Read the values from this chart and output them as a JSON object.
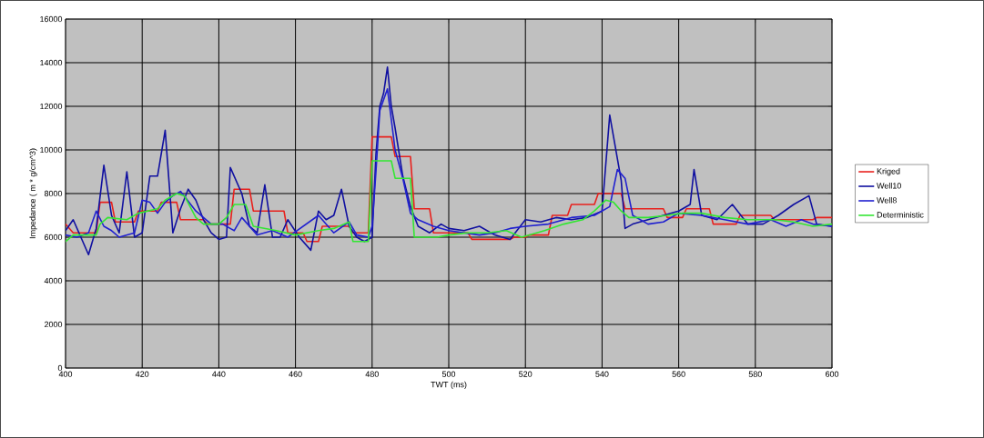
{
  "chart_data": {
    "type": "line",
    "xlabel": "TWT (ms)",
    "ylabel": "Impedance ( m * g/cm^3)",
    "xlim": [
      400,
      600
    ],
    "ylim": [
      0,
      16000
    ],
    "xticks": [
      400,
      420,
      440,
      460,
      480,
      500,
      520,
      540,
      560,
      580,
      600
    ],
    "yticks": [
      0,
      2000,
      4000,
      6000,
      8000,
      10000,
      12000,
      14000,
      16000
    ],
    "grid": true,
    "legend": "right",
    "marker": "none",
    "line_style": "solid",
    "series": [
      {
        "name": "Kriged",
        "color": "#e8201c",
        "x": [
          400,
          402,
          408,
          409,
          412,
          413,
          418,
          419,
          424,
          425,
          429,
          430,
          436,
          437,
          443,
          444,
          448,
          449,
          457,
          458,
          462,
          463,
          466,
          467,
          474,
          475,
          479,
          480,
          485,
          486,
          490,
          491,
          495,
          496,
          505,
          506,
          516,
          517,
          520,
          521,
          526,
          527,
          531,
          532,
          538,
          539,
          545,
          546,
          556,
          557,
          561,
          562,
          568,
          569,
          575,
          576,
          584,
          585,
          595,
          596,
          600
        ],
        "values": [
          6600,
          6200,
          6200,
          7600,
          7600,
          6700,
          6700,
          7200,
          7200,
          7600,
          7600,
          6800,
          6800,
          6600,
          6600,
          8200,
          8200,
          7200,
          7200,
          6200,
          6200,
          5800,
          5800,
          6500,
          6500,
          6200,
          6200,
          10600,
          10600,
          9700,
          9700,
          7300,
          7300,
          6200,
          6200,
          5900,
          5900,
          6000,
          6000,
          6100,
          6100,
          7000,
          7000,
          7500,
          7500,
          8000,
          8000,
          7300,
          7300,
          6900,
          6900,
          7300,
          7300,
          6600,
          6600,
          7000,
          7000,
          6800,
          6800,
          6900,
          6900
        ]
      },
      {
        "name": "Well10",
        "color": "#1010a0",
        "x": [
          400,
          402,
          404,
          406,
          408,
          410,
          412,
          414,
          416,
          418,
          420,
          422,
          424,
          426,
          428,
          430,
          432,
          434,
          436,
          438,
          440,
          442,
          443,
          446,
          448,
          450,
          452,
          454,
          456,
          458,
          461,
          464,
          466,
          468,
          470,
          472,
          474,
          476,
          478,
          480,
          481,
          482,
          483,
          484,
          485,
          486,
          488,
          490,
          492,
          495,
          498,
          500,
          504,
          508,
          512,
          516,
          520,
          524,
          528,
          532,
          536,
          540,
          542,
          543,
          545,
          546,
          548,
          552,
          556,
          560,
          563,
          564,
          566,
          570,
          574,
          578,
          582,
          586,
          590,
          594,
          596,
          600
        ],
        "values": [
          6300,
          6800,
          6000,
          5200,
          6400,
          9300,
          7000,
          6200,
          9000,
          6000,
          6200,
          8800,
          8800,
          10900,
          6200,
          7300,
          8200,
          7700,
          6800,
          6200,
          5900,
          6000,
          9200,
          8000,
          6500,
          6200,
          8400,
          6000,
          6000,
          6800,
          6000,
          5400,
          7200,
          6800,
          7000,
          8200,
          6500,
          6000,
          5800,
          6000,
          9800,
          12000,
          12600,
          13800,
          12000,
          11000,
          8800,
          7400,
          6500,
          6200,
          6600,
          6400,
          6300,
          6500,
          6100,
          5900,
          6800,
          6700,
          6900,
          6800,
          6900,
          7200,
          11600,
          10600,
          8600,
          6400,
          6600,
          6800,
          7000,
          7200,
          7500,
          9100,
          7000,
          6800,
          7500,
          6600,
          6600,
          7000,
          7500,
          7900,
          6600,
          6500
        ]
      },
      {
        "name": "Well8",
        "color": "#2020d0",
        "x": [
          400,
          403,
          406,
          408,
          410,
          412,
          414,
          418,
          420,
          422,
          424,
          426,
          428,
          430,
          434,
          438,
          441,
          444,
          446,
          450,
          454,
          458,
          462,
          466,
          470,
          474,
          476,
          479,
          480,
          481,
          482,
          484,
          486,
          488,
          490,
          492,
          496,
          500,
          504,
          508,
          512,
          516,
          520,
          526,
          532,
          538,
          542,
          544,
          546,
          548,
          552,
          556,
          560,
          566,
          572,
          578,
          584,
          588,
          592,
          595,
          600
        ],
        "values": [
          6100,
          6000,
          6200,
          7200,
          6500,
          6300,
          6000,
          6200,
          7700,
          7600,
          7100,
          7600,
          7900,
          8100,
          7200,
          6600,
          6600,
          6300,
          6900,
          6100,
          6300,
          6000,
          6500,
          7000,
          6200,
          6700,
          6100,
          6000,
          6500,
          9000,
          11800,
          12800,
          10000,
          8700,
          7100,
          6800,
          6500,
          6300,
          6200,
          6100,
          6200,
          6400,
          6500,
          6600,
          6900,
          7000,
          7400,
          9100,
          8700,
          7000,
          6600,
          6700,
          7100,
          7000,
          6800,
          6600,
          6800,
          6500,
          6800,
          6600,
          6500
        ]
      },
      {
        "name": "Deterministic",
        "color": "#33e633",
        "x": [
          400,
          402,
          408,
          409,
          411,
          416,
          419,
          424,
          426,
          429,
          431,
          434,
          436,
          440,
          442,
          444,
          447,
          449,
          455,
          460,
          466,
          470,
          474,
          475,
          479,
          480,
          485,
          486,
          490,
          491,
          497,
          500,
          505,
          510,
          515,
          519,
          525,
          530,
          535,
          538,
          541,
          543,
          545,
          547,
          552,
          557,
          561,
          566,
          572,
          578,
          585,
          590,
          595,
          600
        ],
        "values": [
          5800,
          6100,
          6100,
          6600,
          6900,
          6800,
          7100,
          7300,
          7700,
          8000,
          7900,
          6900,
          6600,
          6600,
          6900,
          7500,
          7500,
          6500,
          6300,
          6100,
          6300,
          6400,
          6700,
          5800,
          5800,
          9500,
          9500,
          8700,
          8700,
          6000,
          6000,
          6100,
          6200,
          6200,
          6300,
          6000,
          6300,
          6600,
          6800,
          7200,
          7700,
          7600,
          7200,
          6900,
          6900,
          7000,
          7100,
          7100,
          6900,
          6800,
          6800,
          6700,
          6500,
          6600
        ]
      }
    ]
  }
}
